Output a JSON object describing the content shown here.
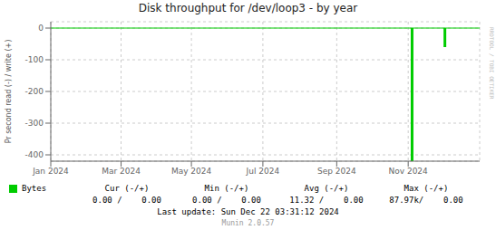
{
  "chart_data": {
    "type": "bar",
    "title": "Disk throughput for /dev/loop3 - by year",
    "y_label": "Pr second read (-) / write (+)",
    "x": [
      1730678400,
      1733097600
    ],
    "series": [
      {
        "name": "Bytes",
        "color": "#00cc00",
        "values": [
          -420,
          -60
        ]
      }
    ],
    "xlim": [
      1704067200,
      1735689600
    ],
    "xticks": [
      {
        "value": 1704067200,
        "label": "Jan 2024"
      },
      {
        "value": 1709251200,
        "label": "Mar 2024"
      },
      {
        "value": 1714435200,
        "label": "May 2024"
      },
      {
        "value": 1719705600,
        "label": "Jul 2024"
      },
      {
        "value": 1725148800,
        "label": "Sep 2024"
      },
      {
        "value": 1730419200,
        "label": "Nov 2024"
      }
    ],
    "ylim": [
      -420,
      20
    ],
    "yticks": [
      0,
      -100,
      -200,
      -300,
      -400
    ],
    "grid": true,
    "hlines": [
      0
    ],
    "legend_table": {
      "headers": [
        "Cur (-/+)",
        "Min (-/+)",
        "Avg (-/+)",
        "Max (-/+)"
      ],
      "values": [
        "0.00 /    0.00",
        "0.00 /    0.00",
        "11.32 /    0.00",
        "87.97k/    0.00"
      ]
    },
    "annotations": [
      "Last update: Sun Dec 22 03:31:12 2024",
      "Munin 2.0.57",
      "RRDTOOL / TOBI OETIKER"
    ]
  }
}
